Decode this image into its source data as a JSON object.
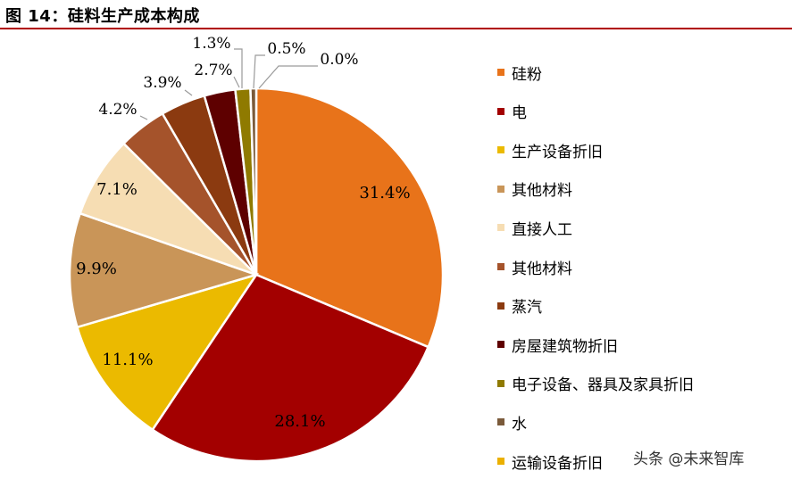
{
  "figure_title": "图 14：硅料生产成本构成",
  "watermark": "头条 @未来智库",
  "chart_data": {
    "type": "pie",
    "unit": "%",
    "slices": [
      {
        "name": "硅粉",
        "value": 31.4,
        "label": "31.4%",
        "color": "#E8731A"
      },
      {
        "name": "电",
        "value": 28.1,
        "label": "28.1%",
        "color": "#A30000"
      },
      {
        "name": "生产设备折旧",
        "value": 11.1,
        "label": "11.1%",
        "color": "#EBBA00"
      },
      {
        "name": "其他材料",
        "value": 9.9,
        "label": "9.9%",
        "color": "#C99558"
      },
      {
        "name": "直接人工",
        "value": 7.1,
        "label": "7.1%",
        "color": "#F6DDB3"
      },
      {
        "name": "其他材料",
        "value": 4.2,
        "label": "4.2%",
        "color": "#A5532B"
      },
      {
        "name": "蒸汽",
        "value": 3.9,
        "label": "3.9%",
        "color": "#8B3A10"
      },
      {
        "name": "房屋建筑物折旧",
        "value": 2.7,
        "label": "2.7%",
        "color": "#5E0000"
      },
      {
        "name": "电子设备、器具及家具折旧",
        "value": 1.3,
        "label": "1.3%",
        "color": "#8F7A00"
      },
      {
        "name": "水",
        "value": 0.5,
        "label": "0.5%",
        "color": "#7A5A3A"
      },
      {
        "name": "运输设备折旧",
        "value": 0.0,
        "label": "0.0%",
        "color": "#EBB000"
      }
    ],
    "start_angle": "12 o'clock",
    "direction": "clockwise",
    "legend_position": "right"
  }
}
